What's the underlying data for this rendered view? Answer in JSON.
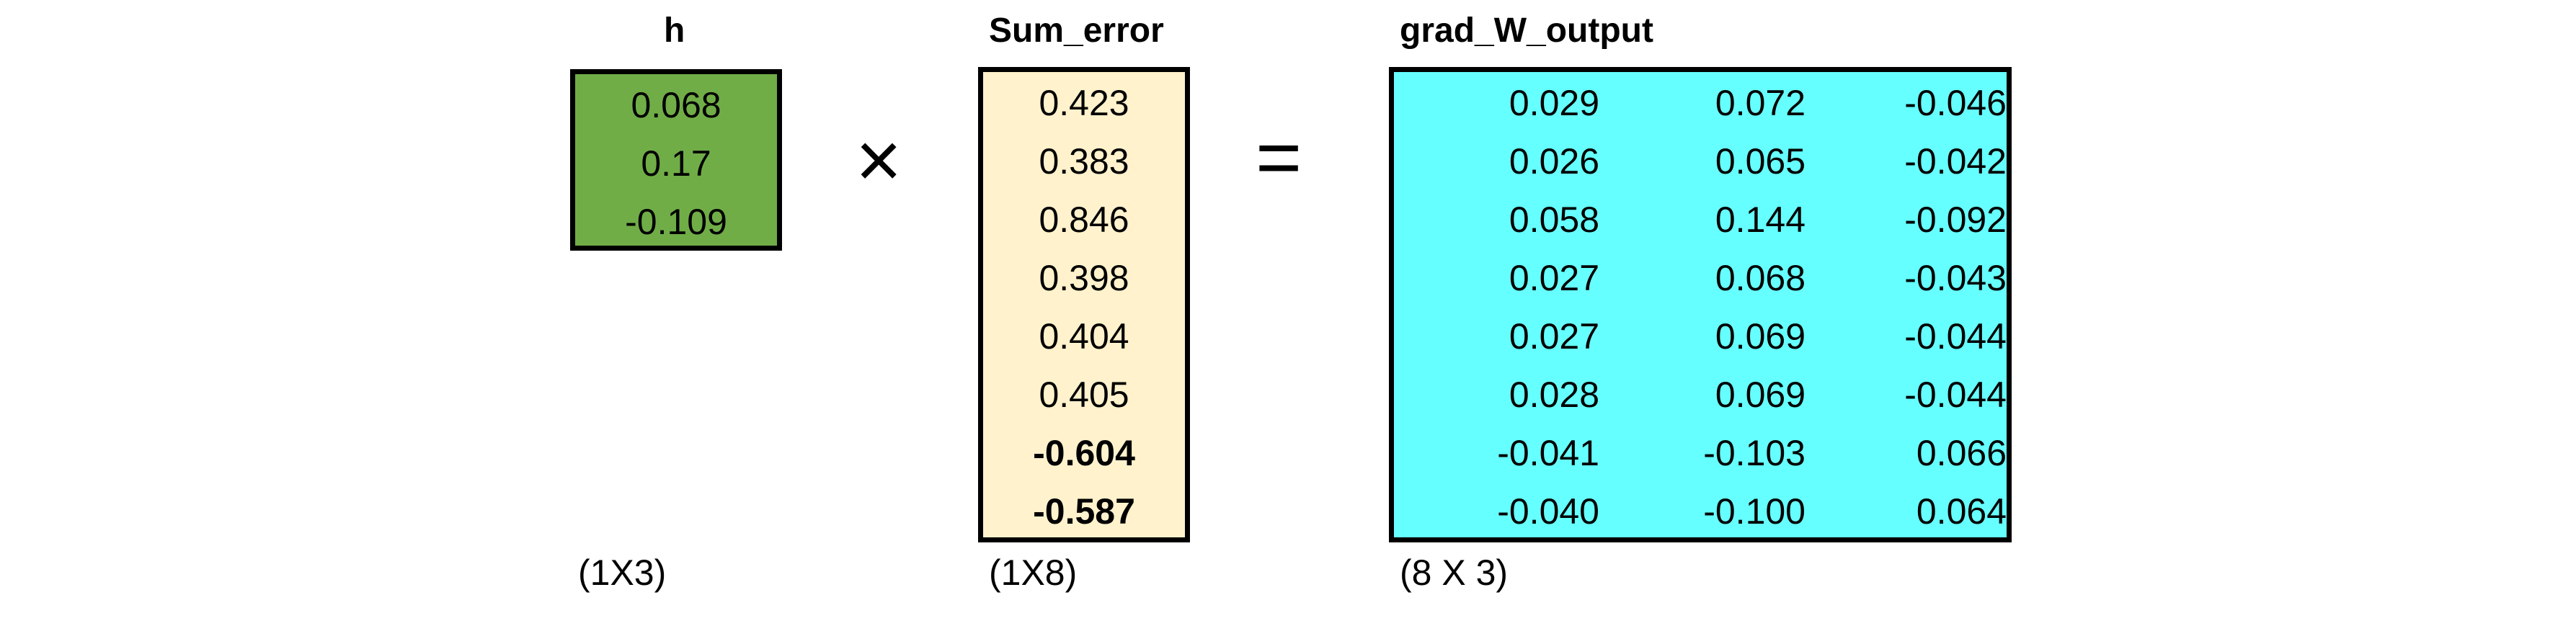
{
  "matrices": {
    "h": {
      "title": "h",
      "values": [
        "0.068",
        "0.17",
        "-0.109"
      ],
      "dims": "(1X3)",
      "fill": "#70ad47"
    },
    "sum_error": {
      "title": "Sum_error",
      "values": [
        "0.423",
        "0.383",
        "0.846",
        "0.398",
        "0.404",
        "0.405",
        "-0.604",
        "-0.587"
      ],
      "bold_rows": [
        6,
        7
      ],
      "dims": "(1X8)",
      "fill": "#fff2cc"
    },
    "grad_w_output": {
      "title": "grad_W_output",
      "rows": [
        [
          "0.029",
          "0.072",
          "-0.046"
        ],
        [
          "0.026",
          "0.065",
          "-0.042"
        ],
        [
          "0.058",
          "0.144",
          "-0.092"
        ],
        [
          "0.027",
          "0.068",
          "-0.043"
        ],
        [
          "0.027",
          "0.069",
          "-0.044"
        ],
        [
          "0.028",
          "0.069",
          "-0.044"
        ],
        [
          "-0.041",
          "-0.103",
          "0.066"
        ],
        [
          "-0.040",
          "-0.100",
          "0.064"
        ]
      ],
      "dims": "(8 X 3)",
      "fill": "#66ffff"
    }
  },
  "operators": {
    "multiply": "×",
    "equals": "="
  }
}
